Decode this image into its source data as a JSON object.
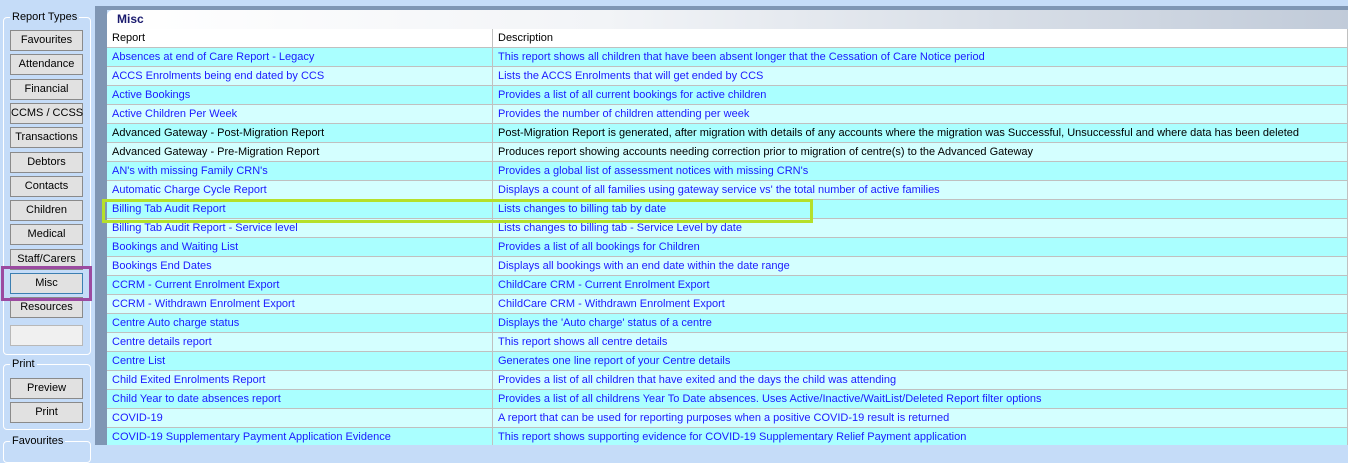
{
  "sidebar": {
    "report_types_title": "Report Types",
    "buttons": [
      "Favourites",
      "Attendance",
      "Financial",
      "CCMS / CCSS",
      "Transactions",
      "Debtors",
      "Contacts",
      "Children",
      "Medical",
      "Staff/Carers",
      "Misc",
      "Resources"
    ],
    "active": "Misc",
    "print_title": "Print",
    "print_buttons": [
      "Preview",
      "Print"
    ],
    "favourites_title": "Favourites"
  },
  "panel": {
    "title": "Misc",
    "columns": [
      "Report",
      "Description"
    ],
    "rows": [
      {
        "report": "Absences at end of Care Report - Legacy",
        "description": "This report shows all children that have been absent longer that the Cessation of Care Notice period",
        "link": true
      },
      {
        "report": "ACCS Enrolments being end dated by CCS",
        "description": "Lists the ACCS Enrolments that will get ended by CCS",
        "link": true
      },
      {
        "report": "Active Bookings",
        "description": "Provides a list of all current bookings for active children",
        "link": true
      },
      {
        "report": "Active Children Per Week",
        "description": "Provides the number of children attending per week",
        "link": true
      },
      {
        "report": "Advanced Gateway - Post-Migration Report",
        "description": "Post-Migration Report is generated, after migration with details of any accounts where the migration was Successful, Unsuccessful and where data has been deleted",
        "link": false
      },
      {
        "report": "Advanced Gateway - Pre-Migration Report",
        "description": "Produces report showing accounts needing correction prior to migration of centre(s) to the Advanced Gateway",
        "link": false
      },
      {
        "report": "AN's with missing Family CRN's",
        "description": "Provides a global list of assessment notices with missing CRN's",
        "link": true
      },
      {
        "report": "Automatic Charge Cycle Report",
        "description": "Displays a count of all families using gateway service vs' the total number of active families",
        "link": true
      },
      {
        "report": "Billing Tab Audit Report",
        "description": "Lists changes to billing tab by date",
        "link": true
      },
      {
        "report": "Billing Tab Audit Report - Service level",
        "description": "Lists changes to billing tab - Service Level by date",
        "link": true
      },
      {
        "report": "Bookings and Waiting List",
        "description": "Provides a list of all bookings for Children",
        "link": true
      },
      {
        "report": "Bookings End Dates",
        "description": "Displays all bookings with an end date within the date range",
        "link": true
      },
      {
        "report": "CCRM - Current Enrolment Export",
        "description": "ChildCare CRM - Current Enrolment Export",
        "link": true
      },
      {
        "report": "CCRM - Withdrawn Enrolment Export",
        "description": "ChildCare CRM - Withdrawn Enrolment Export",
        "link": true
      },
      {
        "report": "Centre Auto charge status",
        "description": "Displays the 'Auto charge' status of a centre",
        "link": true
      },
      {
        "report": "Centre details report",
        "description": "This report shows all centre details",
        "link": true
      },
      {
        "report": "Centre List",
        "description": "Generates one line report of your Centre details",
        "link": true
      },
      {
        "report": "Child Exited Enrolments Report",
        "description": "Provides a list of all children that have exited and the days the child was attending",
        "link": true
      },
      {
        "report": "Child Year to date absences report",
        "description": "Provides a list of all childrens Year To Date absences. Uses Active/Inactive/WaitList/Deleted Report filter options",
        "link": true
      },
      {
        "report": "COVID-19",
        "description": "A report that can be used for reporting purposes when a positive COVID-19 result is returned",
        "link": true
      },
      {
        "report": "COVID-19 Supplementary Payment Application Evidence",
        "description": "This report shows supporting evidence for COVID-19 Supplementary Relief Payment application",
        "link": true
      }
    ]
  },
  "colors": {
    "row_odd": "#aaffff",
    "row_even": "#d4ffff",
    "link": "#1a1aff",
    "highlight_menu": "#9b4aa0",
    "highlight_row": "#b5e02a"
  }
}
